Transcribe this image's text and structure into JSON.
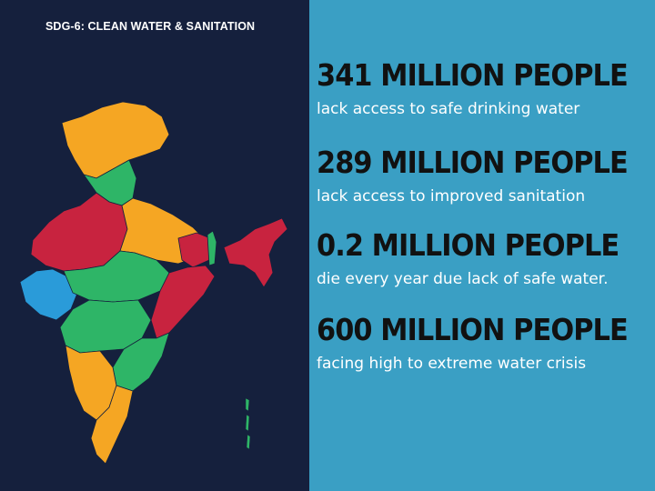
{
  "title": "SDG-6: CLEAN WATER & SANITATION",
  "colors": {
    "panel_dark": "#15203d",
    "panel_blue": "#3a9fc4",
    "map_orange": "#f5a623",
    "map_red": "#c8233f",
    "map_green": "#2eb567",
    "map_blue": "#2a9bd9"
  },
  "stats": [
    {
      "heading": "341 MILLION PEOPLE",
      "description": "lack access to safe drinking water"
    },
    {
      "heading": "289 MILLION PEOPLE",
      "description": "lack access to improved sanitation"
    },
    {
      "heading": "0.2 MILLION PEOPLE",
      "description": "die every year due lack of safe water."
    },
    {
      "heading": "600 MILLION PEOPLE",
      "description": "facing high to extreme water crisis"
    }
  ]
}
